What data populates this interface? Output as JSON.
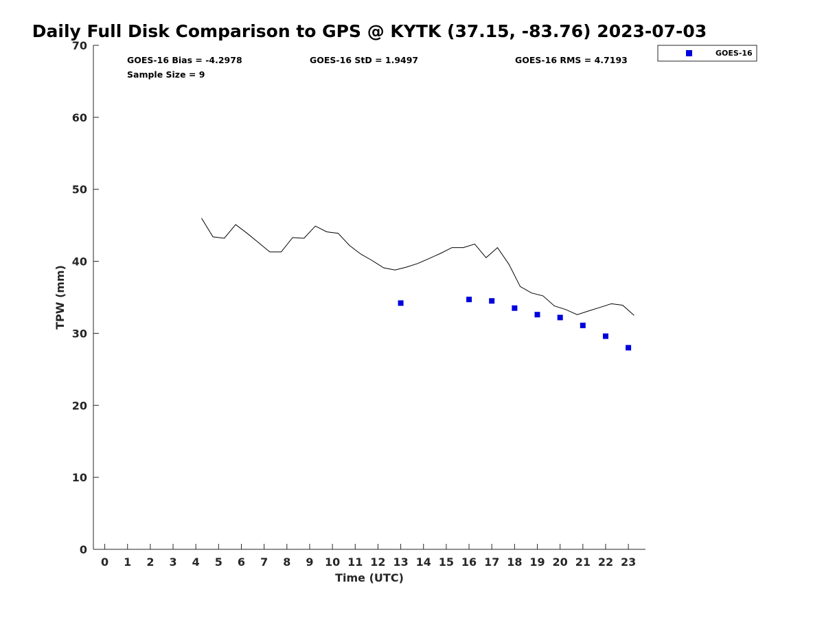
{
  "chart_data": {
    "type": "scatter",
    "title": "Daily Full Disk Comparison to GPS @ KYTK (37.15, -83.76) 2023-07-03",
    "xlabel": "Time (UTC)",
    "ylabel": "TPW (mm)",
    "xlim": [
      -0.5,
      23.75
    ],
    "ylim": [
      0,
      70
    ],
    "xticks": [
      0,
      1,
      2,
      3,
      4,
      5,
      6,
      7,
      8,
      9,
      10,
      11,
      12,
      13,
      14,
      15,
      16,
      17,
      18,
      19,
      20,
      21,
      22,
      23
    ],
    "yticks": [
      0,
      10,
      20,
      30,
      40,
      50,
      60,
      70
    ],
    "grid": false,
    "legend_position": "top-right (outside plot)",
    "stats": {
      "bias": "GOES-16 Bias = -4.2978",
      "std": "GOES-16 StD = 1.9497",
      "rms": "GOES-16 RMS = 4.7193",
      "sample_size": "Sample Size = 9"
    },
    "series": [
      {
        "kind": "line",
        "color": "#000000",
        "x": [
          4.25,
          4.75,
          5.25,
          5.75,
          6.25,
          6.75,
          7.25,
          7.75,
          8.25,
          8.75,
          9.25,
          9.75,
          10.25,
          10.75,
          11.25,
          11.75,
          12.25,
          12.75,
          13.25,
          13.75,
          14.25,
          14.75,
          15.25,
          15.75,
          16.25,
          16.75,
          17.25,
          17.75,
          18.25,
          18.75,
          19.25,
          19.75,
          20.25,
          20.75,
          21.25,
          21.75,
          22.25,
          22.75,
          23.25
        ],
        "y": [
          46.0,
          43.4,
          43.2,
          45.1,
          43.9,
          42.6,
          41.3,
          41.3,
          43.3,
          43.2,
          44.9,
          44.1,
          43.9,
          42.2,
          41.0,
          40.1,
          39.1,
          38.8,
          39.2,
          39.7,
          40.4,
          41.1,
          41.9,
          41.9,
          42.4,
          40.5,
          41.9,
          39.6,
          36.5,
          35.6,
          35.2,
          33.8,
          33.3,
          32.6,
          33.1,
          33.6,
          34.1,
          33.9,
          32.5
        ]
      },
      {
        "name": "GOES-16",
        "kind": "scatter",
        "color": "#0000dd",
        "x": [
          13,
          16,
          17,
          18,
          19,
          20,
          21,
          22,
          23
        ],
        "y": [
          34.2,
          34.7,
          34.5,
          33.5,
          32.6,
          32.2,
          31.1,
          29.6,
          28.0
        ]
      }
    ]
  }
}
